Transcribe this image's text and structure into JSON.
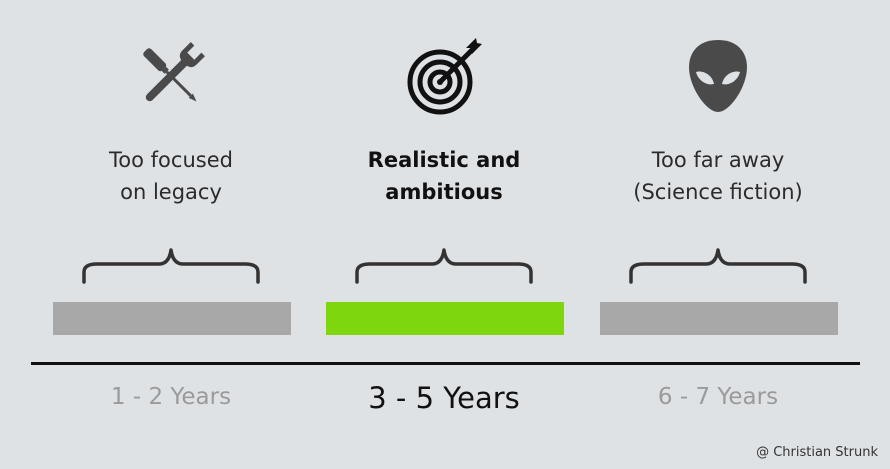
{
  "columns": [
    {
      "icon": "wrench-screwdriver-icon",
      "label_lines": [
        "Too focused",
        "on legacy"
      ],
      "years": "1 - 2 Years",
      "bar_color": "#a8a8a8",
      "emphasis": false
    },
    {
      "icon": "target-arrow-icon",
      "label_lines": [
        "Realistic and",
        "ambitious"
      ],
      "years": "3 - 5 Years",
      "bar_color": "#7ed60e",
      "emphasis": true
    },
    {
      "icon": "alien-head-icon",
      "label_lines": [
        "Too far away",
        "(Science fiction)"
      ],
      "years": "6 - 7 Years",
      "bar_color": "#a8a8a8",
      "emphasis": false
    }
  ],
  "colors": {
    "background": "#dfe2e5",
    "icon": "#4a4a4a",
    "timeline": "#111111"
  },
  "credit": "@ Christian Strunk"
}
